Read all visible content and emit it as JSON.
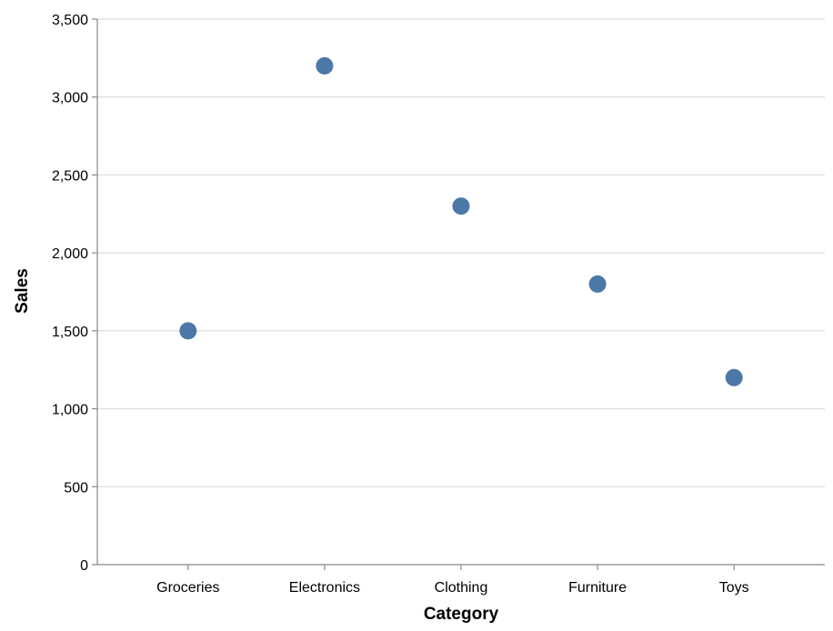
{
  "chart_data": {
    "type": "scatter",
    "categories": [
      "Groceries",
      "Electronics",
      "Clothing",
      "Furniture",
      "Toys"
    ],
    "values": [
      1500,
      3200,
      2300,
      1800,
      1200
    ],
    "xlabel": "Category",
    "ylabel": "Sales",
    "ylim": [
      0,
      3500
    ],
    "yticks": [
      0,
      500,
      1000,
      1500,
      2000,
      2500,
      3000,
      3500
    ],
    "ytick_labels": [
      "0",
      "500",
      "1,000",
      "1,500",
      "2,000",
      "2,500",
      "3,000",
      "3,500"
    ],
    "grid": true,
    "point_color": "#4c78a8"
  }
}
